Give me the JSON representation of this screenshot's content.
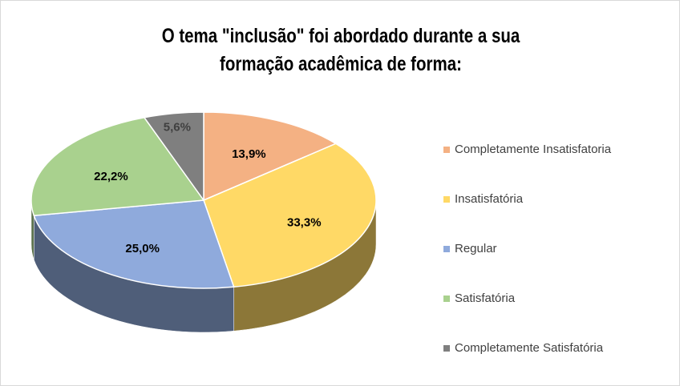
{
  "chart_data": {
    "type": "pie",
    "title": "O tema \"inclusão\" foi abordado durante a sua formação acadêmica de forma:",
    "categories": [
      "Completamente Insatisfatoria",
      "Insatisfatória",
      "Regular",
      "Satisfatória",
      "Completamente Satisfatória"
    ],
    "values": [
      13.9,
      33.3,
      25.0,
      22.2,
      5.6
    ],
    "value_labels": [
      "13,9%",
      "33,3%",
      "25,0%",
      "22,2%",
      "5,6%"
    ],
    "colors": [
      "#f4b183",
      "#ffd966",
      "#8faadc",
      "#a9d18e",
      "#7f7f7f"
    ],
    "legend": "right"
  }
}
